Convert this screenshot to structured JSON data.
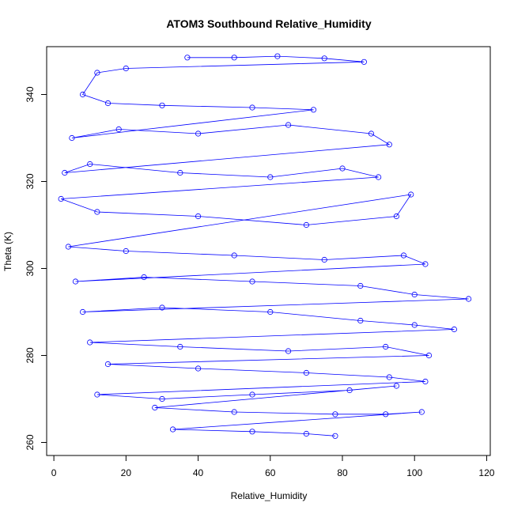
{
  "chart_data": {
    "type": "scatter",
    "title": "ATOM3 Southbound Relative_Humidity",
    "xlabel": "Relative_Humidity",
    "ylabel": "Theta (K)",
    "xlim": [
      -2,
      121
    ],
    "ylim": [
      257,
      351
    ],
    "xticks": [
      0,
      20,
      40,
      60,
      80,
      100,
      120
    ],
    "yticks": [
      260,
      280,
      300,
      320,
      340
    ],
    "grid": false,
    "legend": "none",
    "style": "points connected by lines",
    "color": "#0000ff",
    "series": [
      {
        "values": [
          [
            37,
            348.5
          ],
          [
            50,
            348.5
          ],
          [
            62,
            348.8
          ],
          [
            75,
            348.3
          ],
          [
            86,
            347.5
          ],
          [
            20,
            346
          ],
          [
            12,
            345
          ],
          [
            8,
            340
          ],
          [
            15,
            338
          ],
          [
            30,
            337.5
          ],
          [
            55,
            337
          ],
          [
            72,
            336.5
          ],
          [
            5,
            330
          ],
          [
            18,
            332
          ],
          [
            40,
            331
          ],
          [
            65,
            333
          ],
          [
            88,
            331
          ],
          [
            93,
            328.5
          ],
          [
            3,
            322
          ],
          [
            10,
            324
          ],
          [
            35,
            322
          ],
          [
            60,
            321
          ],
          [
            80,
            323
          ],
          [
            90,
            321
          ],
          [
            2,
            316
          ],
          [
            12,
            313
          ],
          [
            40,
            312
          ],
          [
            70,
            310
          ],
          [
            95,
            312
          ],
          [
            99,
            317
          ],
          [
            4,
            305
          ],
          [
            20,
            304
          ],
          [
            50,
            303
          ],
          [
            75,
            302
          ],
          [
            97,
            303
          ],
          [
            103,
            301
          ],
          [
            6,
            297
          ],
          [
            25,
            298
          ],
          [
            55,
            297
          ],
          [
            85,
            296
          ],
          [
            100,
            294
          ],
          [
            115,
            293
          ],
          [
            8,
            290
          ],
          [
            30,
            291
          ],
          [
            60,
            290
          ],
          [
            85,
            288
          ],
          [
            100,
            287
          ],
          [
            111,
            286
          ],
          [
            10,
            283
          ],
          [
            35,
            282
          ],
          [
            65,
            281
          ],
          [
            92,
            282
          ],
          [
            104,
            280
          ],
          [
            15,
            278
          ],
          [
            40,
            277
          ],
          [
            70,
            276
          ],
          [
            93,
            275
          ],
          [
            103,
            274
          ],
          [
            12,
            271
          ],
          [
            30,
            270
          ],
          [
            55,
            271
          ],
          [
            82,
            272
          ],
          [
            95,
            273
          ],
          [
            28,
            268
          ],
          [
            50,
            267
          ],
          [
            78,
            266.5
          ],
          [
            92,
            266.5
          ],
          [
            102,
            267
          ],
          [
            33,
            263
          ],
          [
            55,
            262.5
          ],
          [
            70,
            262
          ],
          [
            78,
            261.5
          ]
        ]
      }
    ]
  }
}
